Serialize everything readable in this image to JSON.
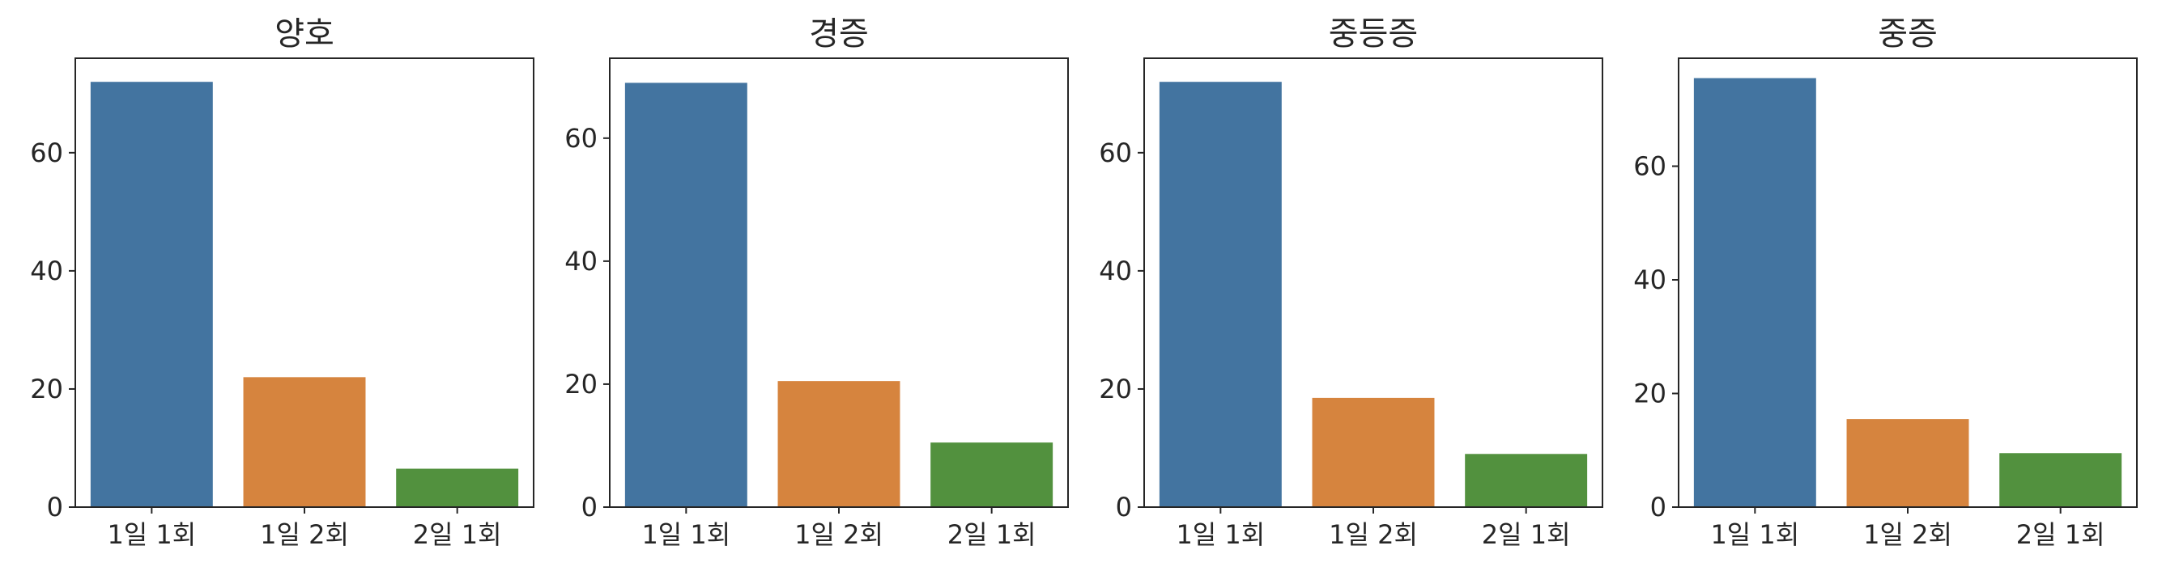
{
  "chart_data": [
    {
      "type": "bar",
      "title": "양호",
      "categories": [
        "1일 1회",
        "1일 2회",
        "2일 1회"
      ],
      "values": [
        72,
        22,
        6.5
      ],
      "yticks": [
        "0",
        "20",
        "40",
        "60"
      ],
      "ylim": [
        0,
        76
      ],
      "colors": [
        "#4374a0",
        "#d6843e",
        "#52913e"
      ]
    },
    {
      "type": "bar",
      "title": "경증",
      "categories": [
        "1일 1회",
        "1일 2회",
        "2일 1회"
      ],
      "values": [
        69,
        20.5,
        10.5
      ],
      "yticks": [
        "0",
        "20",
        "40",
        "60"
      ],
      "ylim": [
        0,
        73
      ],
      "colors": [
        "#4374a0",
        "#d6843e",
        "#52913e"
      ]
    },
    {
      "type": "bar",
      "title": "중등증",
      "categories": [
        "1일 1회",
        "1일 2회",
        "2일 1회"
      ],
      "values": [
        72,
        18.5,
        9
      ],
      "yticks": [
        "0",
        "20",
        "40",
        "60"
      ],
      "ylim": [
        0,
        76
      ],
      "colors": [
        "#4374a0",
        "#d6843e",
        "#52913e"
      ]
    },
    {
      "type": "bar",
      "title": "중증",
      "categories": [
        "1일 1회",
        "1일 2회",
        "2일 1회"
      ],
      "values": [
        75.5,
        15.5,
        9.5
      ],
      "yticks": [
        "0",
        "20",
        "40",
        "60"
      ],
      "ylim": [
        0,
        79
      ],
      "colors": [
        "#4374a0",
        "#d6843e",
        "#52913e"
      ]
    }
  ]
}
